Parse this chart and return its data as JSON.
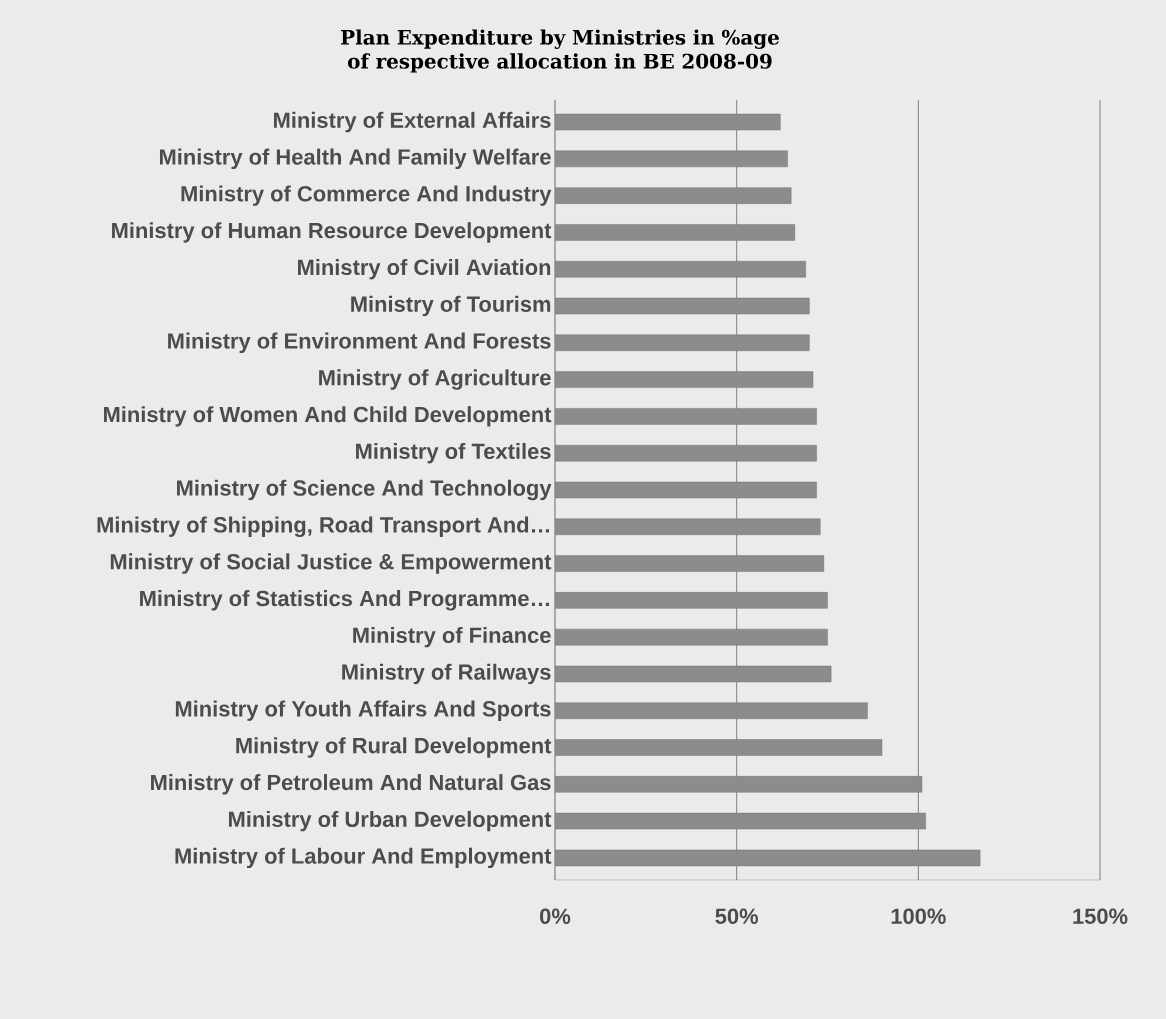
{
  "chart_data": {
    "type": "bar",
    "orientation": "horizontal",
    "title": "Plan Expenditure by Ministries in %age of respective allocation in BE 2008-09",
    "categories": [
      "Ministry of External Affairs",
      "Ministry of Health And Family Welfare",
      "Ministry of Commerce And Industry",
      "Ministry of Human Resource Development",
      "Ministry of Civil Aviation",
      "Ministry of Tourism",
      "Ministry of Environment And Forests",
      "Ministry of Agriculture",
      "Ministry of Women And Child Development",
      "Ministry of Textiles",
      "Ministry of Science And Technology",
      "Ministry of Shipping, Road Transport And…",
      "Ministry of Social Justice & Empowerment",
      "Ministry of Statistics And Programme…",
      "Ministry of Finance",
      "Ministry of Railways",
      "Ministry of Youth Affairs And Sports",
      "Ministry of Rural Development",
      "Ministry of Petroleum And Natural Gas",
      "Ministry of Urban Development",
      "Ministry of Labour And Employment"
    ],
    "values": [
      62,
      64,
      65,
      66,
      69,
      70,
      70,
      71,
      72,
      72,
      72,
      73,
      74,
      75,
      75,
      76,
      86,
      90,
      101,
      102,
      117
    ],
    "color": "#8c8c8c",
    "xlim": [
      0,
      150
    ],
    "xticks": [
      {
        "value": 0,
        "label": "0%"
      },
      {
        "value": 50,
        "label": "50%"
      },
      {
        "value": 100,
        "label": "100%"
      },
      {
        "value": 150,
        "label": "150%"
      }
    ],
    "grid": "x"
  }
}
